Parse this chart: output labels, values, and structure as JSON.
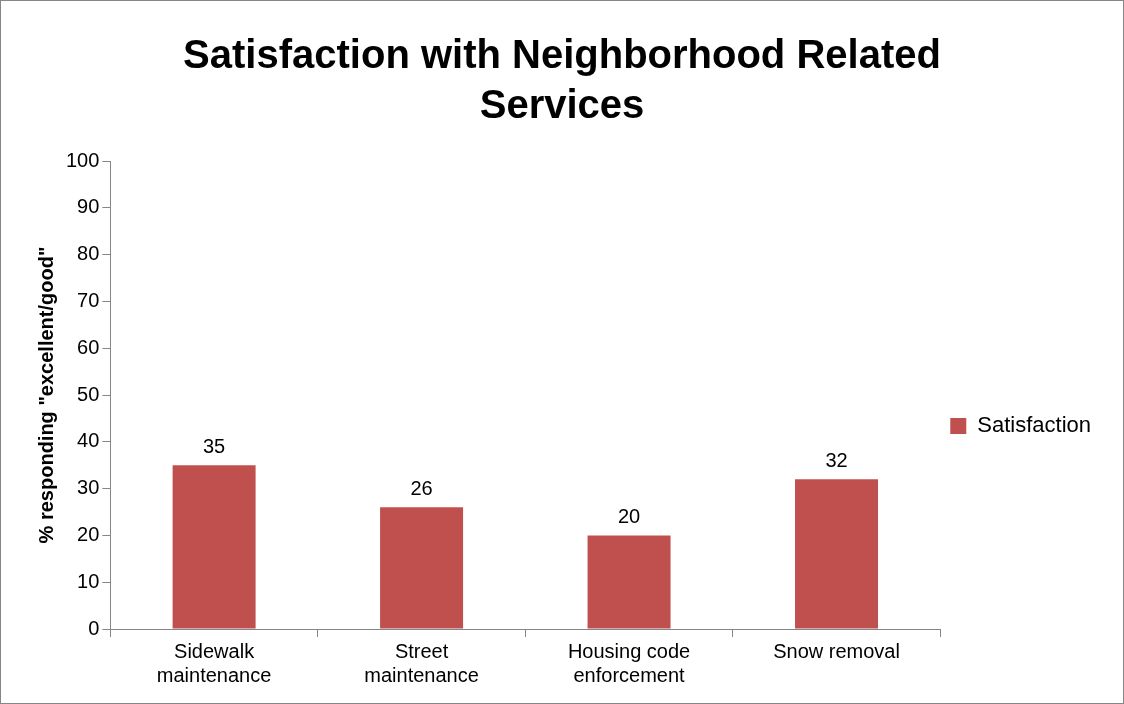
{
  "chart_data": {
    "type": "bar",
    "title": "Satisfaction with Neighborhood Related Services",
    "ylabel": "% responding \"excellent/good\"",
    "categories": [
      "Sidewalk maintenance",
      "Street maintenance",
      "Housing code enforcement",
      "Snow removal"
    ],
    "series": [
      {
        "name": "Satisfaction",
        "color": "#c0504d",
        "values": [
          35,
          26,
          20,
          32
        ]
      }
    ],
    "ylim": [
      0,
      100
    ],
    "yticks": [
      0,
      10,
      20,
      30,
      40,
      50,
      60,
      70,
      80,
      90,
      100
    ],
    "grid": false,
    "legend": "right",
    "data_labels": true
  }
}
